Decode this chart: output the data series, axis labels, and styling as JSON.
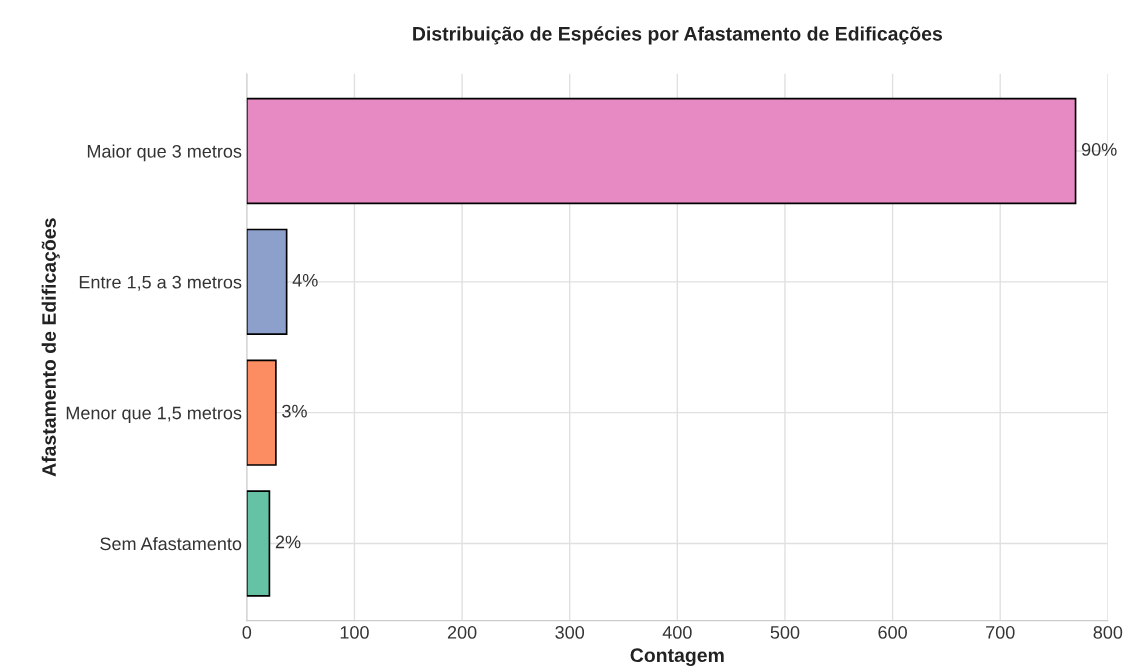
{
  "chart_data": {
    "type": "bar",
    "orientation": "horizontal",
    "title": "Distribuição de Espécies por Afastamento de Edificações",
    "xlabel": "Contagem",
    "ylabel": "Afastamento de Edificações",
    "categories": [
      "Maior que 3 metros",
      "Entre 1,5 a 3 metros",
      "Menor que 1,5 metros",
      "Sem Afastamento"
    ],
    "values": [
      770,
      37,
      27,
      21
    ],
    "colors": [
      "#e78ac3",
      "#8da0cb",
      "#fc8d62",
      "#66c2a5"
    ],
    "annotations": [
      {
        "text": "90%",
        "x": 770,
        "y": "Maior que 3 metros"
      },
      {
        "text": "4%",
        "x": 37,
        "y": "Entre 1,5 a 3 metros"
      },
      {
        "text": "3%",
        "x": 27,
        "y": "Menor que 1,5 metros"
      },
      {
        "text": "2%",
        "x": 21,
        "y": "Sem Afastamento"
      }
    ],
    "xlim": [
      0,
      800
    ],
    "xticks": [
      0,
      100,
      200,
      300,
      400,
      500,
      600,
      700,
      800
    ],
    "grid": true
  }
}
